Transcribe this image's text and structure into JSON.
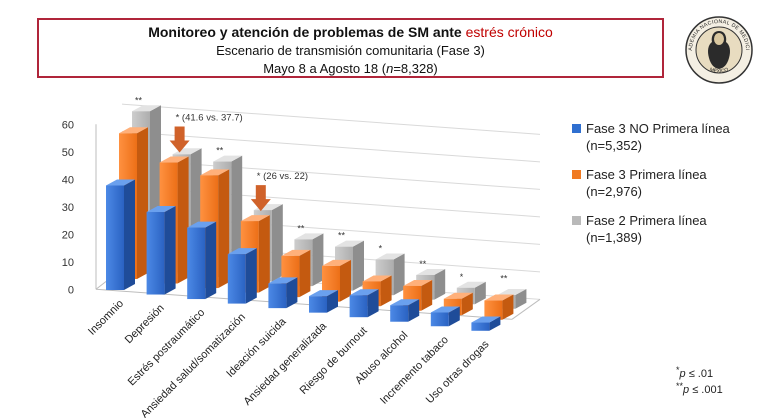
{
  "header": {
    "title_main": "Monitoreo y atención de problemas de SM ante",
    "title_highlight": "estrés crónico",
    "subtitle": "Escenario de transmisión comunitaria (Fase 3)",
    "date_prefix": "Mayo 8 a Agosto  18 (",
    "date_n": "n",
    "date_value": "=8,328)"
  },
  "seal": {
    "top_text": "ACADEMIA NACIONAL DE MEDICINA",
    "bottom_text": "MÉXICO"
  },
  "colors": {
    "blue": "#2f6fd0",
    "orange": "#f07a22",
    "gray": "#b9b9b9",
    "arrow": "#d0622a",
    "frame": "#b0253a"
  },
  "chart_data": {
    "type": "bar",
    "title": "",
    "xlabel": "",
    "ylabel": "",
    "ylim": [
      0,
      60
    ],
    "yticks": [
      "0",
      "10",
      "20",
      "30",
      "40",
      "50",
      "60"
    ],
    "categories": [
      "Insomnio",
      "Depresión",
      "Estrés postraumático",
      "Ansiedad salud/somatización",
      "Ideación suicida",
      "Ansiedad generalizada",
      "Riesgo de burnout",
      "Abuso alcohol",
      "Incremento tabaco",
      "Uso otras drogas"
    ],
    "series": [
      {
        "name": "Fase 3 NO Primera línea",
        "n": "(n=5,352)",
        "values": [
          38,
          30,
          26,
          18,
          9,
          6,
          8,
          6,
          5,
          3
        ]
      },
      {
        "name": "Fase 3 Primera línea",
        "n": "(n=2,976)",
        "values": [
          53,
          44,
          41,
          26,
          15,
          13,
          9,
          9,
          6,
          7
        ]
      },
      {
        "name": "Fase 2 Primera línea",
        "n": "(n=1,389)",
        "values": [
          57,
          43,
          42,
          26,
          17,
          16,
          13,
          9,
          6,
          5
        ]
      }
    ],
    "significance": [
      "**",
      "**",
      "**",
      "**",
      "**",
      "**",
      "*",
      "**",
      "*",
      "**"
    ],
    "annotations": [
      {
        "category": "Depresión",
        "text": "* (41.6 vs. 37.7)"
      },
      {
        "category": "Ansiedad salud/somatización",
        "text": "* (26 vs. 22)"
      }
    ],
    "legend_position": "right"
  },
  "footnote": {
    "l1_stars": "*",
    "l1_text": " ≤ .01",
    "l2_stars": "**",
    "l2_text": " ≤ .001",
    "p": "p"
  }
}
